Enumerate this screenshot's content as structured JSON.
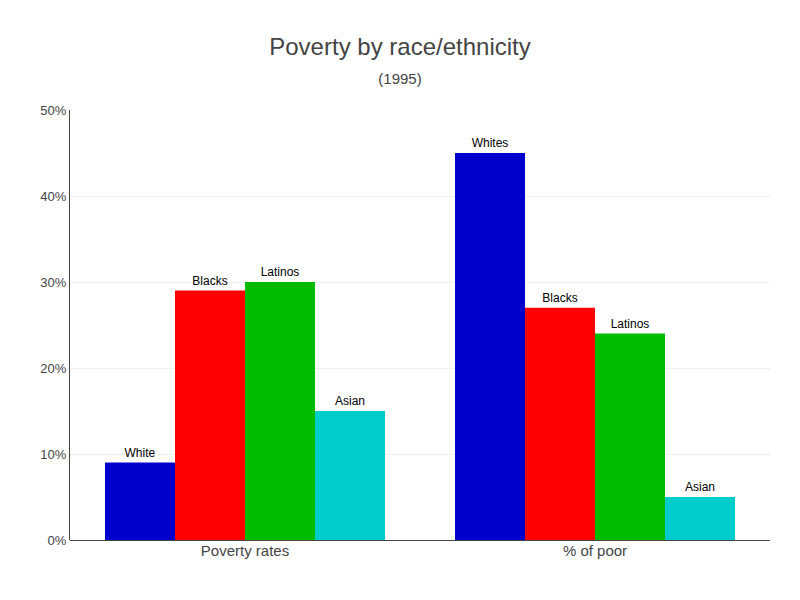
{
  "chart_data": {
    "type": "bar",
    "title": "Poverty by race/ethnicity",
    "subtitle": "(1995)",
    "categories": [
      "Poverty rates",
      "% of poor"
    ],
    "series": [
      {
        "name": "White",
        "color": "#0000cc",
        "values": [
          9,
          45
        ]
      },
      {
        "name": "Blacks",
        "color": "#ff0000",
        "values": [
          29,
          27
        ]
      },
      {
        "name": "Latinos",
        "color": "#00bb00",
        "values": [
          30,
          24
        ]
      },
      {
        "name": "Asian",
        "color": "#00cccc",
        "values": [
          15,
          5
        ]
      }
    ],
    "annotations": [
      {
        "text": "White",
        "series": "White",
        "category": "Poverty rates"
      },
      {
        "text": "Blacks",
        "series": "Blacks",
        "category": "Poverty rates"
      },
      {
        "text": "Latinos",
        "series": "Latinos",
        "category": "Poverty rates"
      },
      {
        "text": "Asian",
        "series": "Asian",
        "category": "Poverty rates"
      },
      {
        "text": "Whites",
        "series": "White",
        "category": "% of poor"
      },
      {
        "text": "Blacks",
        "series": "Blacks",
        "category": "% of poor"
      },
      {
        "text": "Latinos",
        "series": "Latinos",
        "category": "% of poor"
      },
      {
        "text": "Asian",
        "series": "Asian",
        "category": "% of poor"
      }
    ],
    "ylim": [
      0,
      50
    ],
    "yticks": [
      {
        "value": 0,
        "label": "0%"
      },
      {
        "value": 10,
        "label": "10%"
      },
      {
        "value": 20,
        "label": "20%"
      },
      {
        "value": 30,
        "label": "30%"
      },
      {
        "value": 40,
        "label": "40%"
      },
      {
        "value": 50,
        "label": "50%"
      }
    ],
    "grid": true,
    "legend": false
  }
}
